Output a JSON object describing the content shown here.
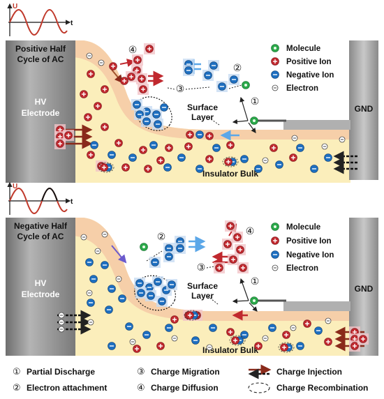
{
  "panels": [
    {
      "cycle_label": [
        "Positive Half",
        "Cycle of AC"
      ],
      "axis_u": "U",
      "axis_t": "t",
      "hv_label": [
        "HV",
        "Electrode"
      ],
      "gnd_label": "GND",
      "surface_label": [
        "Surface",
        "Layer"
      ],
      "bulk_label": "Insulator Bulk",
      "legend": [
        "Molecule",
        "Positive Ion",
        "Negative Ion",
        "Electron"
      ],
      "markers": [
        "④",
        "②",
        "③",
        "①"
      ]
    },
    {
      "cycle_label": [
        "Negative Half",
        "Cycle of AC"
      ],
      "axis_u": "U",
      "axis_t": "t",
      "hv_label": [
        "HV",
        "Electrode"
      ],
      "gnd_label": "GND",
      "surface_label": [
        "Surface",
        "Layer"
      ],
      "bulk_label": "Insulator Bulk",
      "legend": [
        "Molecule",
        "Positive Ion",
        "Negative Ion",
        "Electron"
      ],
      "markers": [
        "②",
        "④",
        "③",
        "①"
      ]
    }
  ],
  "key": [
    {
      "symbol": "①",
      "label": "Partial Discharge"
    },
    {
      "symbol": "③",
      "label": "Charge Migration"
    },
    {
      "label": "Charge Injection"
    },
    {
      "symbol": "②",
      "label": "Electron attachment"
    },
    {
      "symbol": "④",
      "label": "Charge Diffusion"
    },
    {
      "label": "Charge Recombination"
    }
  ],
  "colors": {
    "bulk": "#fbeebb",
    "surface_layer": "#f6cfa9",
    "electrode": "#9a9a9a",
    "positive_ion": "#c0282e",
    "negative_ion": "#1e6fc0",
    "molecule": "#2ba84a",
    "injection_arrow": "#8a2a1a",
    "wave": "#c0392b"
  }
}
